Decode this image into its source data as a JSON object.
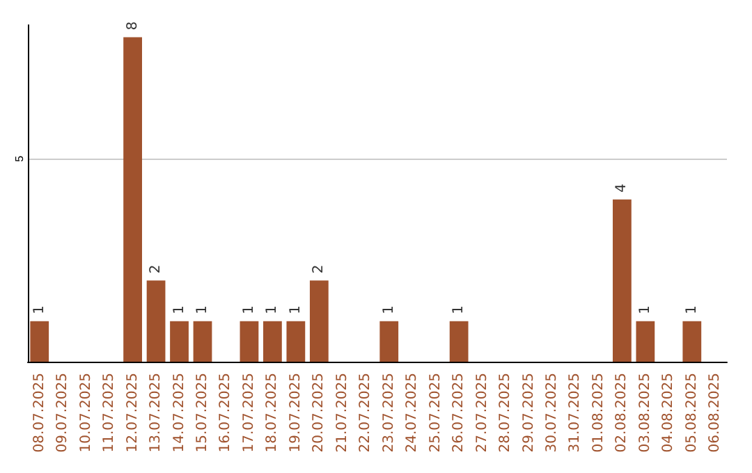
{
  "chart_data": {
    "type": "bar",
    "categories": [
      "08.07.2025",
      "09.07.2025",
      "10.07.2025",
      "11.07.2025",
      "12.07.2025",
      "13.07.2025",
      "14.07.2025",
      "15.07.2025",
      "16.07.2025",
      "17.07.2025",
      "18.07.2025",
      "19.07.2025",
      "20.07.2025",
      "21.07.2025",
      "22.07.2025",
      "23.07.2025",
      "24.07.2025",
      "25.07.2025",
      "26.07.2025",
      "27.07.2025",
      "28.07.2025",
      "29.07.2025",
      "30.07.2025",
      "31.07.2025",
      "01.08.2025",
      "02.08.2025",
      "03.08.2025",
      "04.08.2025",
      "05.08.2025",
      "06.08.2025"
    ],
    "values": [
      1,
      0,
      0,
      0,
      8,
      2,
      1,
      1,
      0,
      1,
      1,
      1,
      2,
      0,
      0,
      1,
      0,
      0,
      1,
      0,
      0,
      0,
      0,
      0,
      0,
      4,
      1,
      0,
      1,
      0
    ],
    "value_labels": [
      "1",
      null,
      null,
      null,
      "8",
      "2",
      "1",
      "1",
      null,
      "1",
      "1",
      "1",
      "2",
      null,
      null,
      "1",
      null,
      null,
      "1",
      null,
      null,
      null,
      null,
      null,
      null,
      "4",
      "1",
      null,
      "1",
      null
    ],
    "color": "#a0522d",
    "ylim": [
      0,
      8.3
    ],
    "yticks": [
      5
    ],
    "grid": "y"
  }
}
